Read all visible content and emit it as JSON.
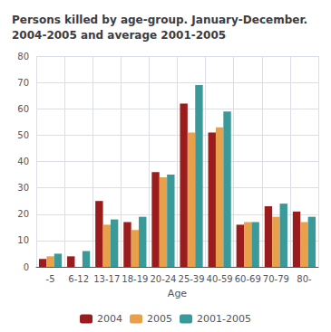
{
  "chart_data": {
    "type": "bar",
    "title": "Persons killed by age-group. January-December.\n2004-2005 and average 2001-2005",
    "xlabel": "Age",
    "categories": [
      "-5",
      "6-12",
      "13-17",
      "18-19",
      "20-24",
      "25-39",
      "40-59",
      "60-69",
      "70-79",
      "80-"
    ],
    "series": [
      {
        "name": "2004",
        "color": "#9b1c1c",
        "values": [
          3,
          4,
          25,
          17,
          36,
          62,
          51,
          16,
          23,
          21
        ]
      },
      {
        "name": "2005",
        "color": "#e8a04a",
        "values": [
          4,
          0,
          16,
          14,
          34,
          51,
          53,
          17,
          19,
          17
        ]
      },
      {
        "name": "2001-2005",
        "color": "#3a9999",
        "values": [
          5,
          6,
          18,
          19,
          35,
          69,
          59,
          17,
          24,
          19
        ]
      }
    ],
    "ylim": [
      0,
      80
    ],
    "yticks": [
      0,
      10,
      20,
      30,
      40,
      50,
      60,
      70,
      80
    ],
    "grid": true,
    "legend": "bottom"
  }
}
